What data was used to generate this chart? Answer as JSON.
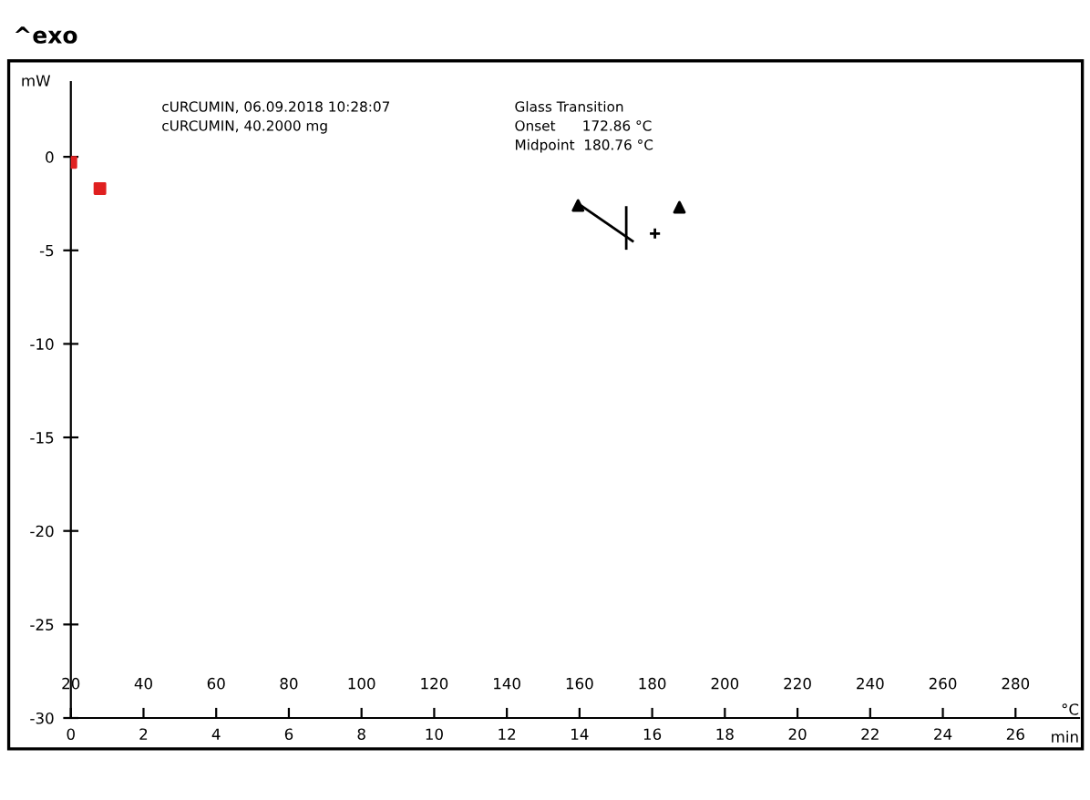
{
  "chart_data": {
    "type": "line",
    "title": "^exo",
    "xlabel": "°C",
    "ylabel": "mW",
    "x2label": "min",
    "xlim": [
      20,
      297.5
    ],
    "xticks": [
      20,
      40,
      60,
      80,
      100,
      120,
      140,
      160,
      180,
      200,
      220,
      240,
      260,
      280
    ],
    "x2lim": [
      0,
      27.75
    ],
    "x2ticks": [
      0,
      2,
      4,
      6,
      8,
      10,
      12,
      14,
      16,
      18,
      20,
      22,
      24,
      26
    ],
    "ylim": [
      -30,
      4
    ],
    "yticks": [
      0,
      -5,
      -10,
      -15,
      -20,
      -25,
      -30
    ],
    "grid": false,
    "legend": false,
    "series": [
      {
        "type": "scatter",
        "color": "#e02020",
        "marker": "square",
        "x": [
          20,
          28
        ],
        "values": [
          -0.3,
          -1.7
        ]
      },
      {
        "type": "line",
        "color": "#000000",
        "marker": "none",
        "x": [
          159.6,
          174.6
        ],
        "values": [
          -2.5,
          -4.5
        ]
      },
      {
        "type": "line",
        "color": "#000000",
        "marker": "none",
        "x": [
          172.86,
          172.86
        ],
        "values": [
          -2.7,
          -4.9
        ]
      },
      {
        "type": "scatter",
        "color": "#000000",
        "marker": "cross",
        "x": [
          180.76
        ],
        "values": [
          -4.1
        ]
      },
      {
        "type": "scatter",
        "color": "#000000",
        "marker": "triangle",
        "x": [
          159.6,
          187.5
        ],
        "values": [
          -2.6,
          -2.7
        ]
      }
    ],
    "annotations": [
      "cURCUMIN, 06.09.2018 10:28:07",
      "cURCUMIN, 40.2000 mg",
      "Glass Transition",
      "Onset      172.86 °C",
      "Midpoint  180.76 °C"
    ]
  }
}
